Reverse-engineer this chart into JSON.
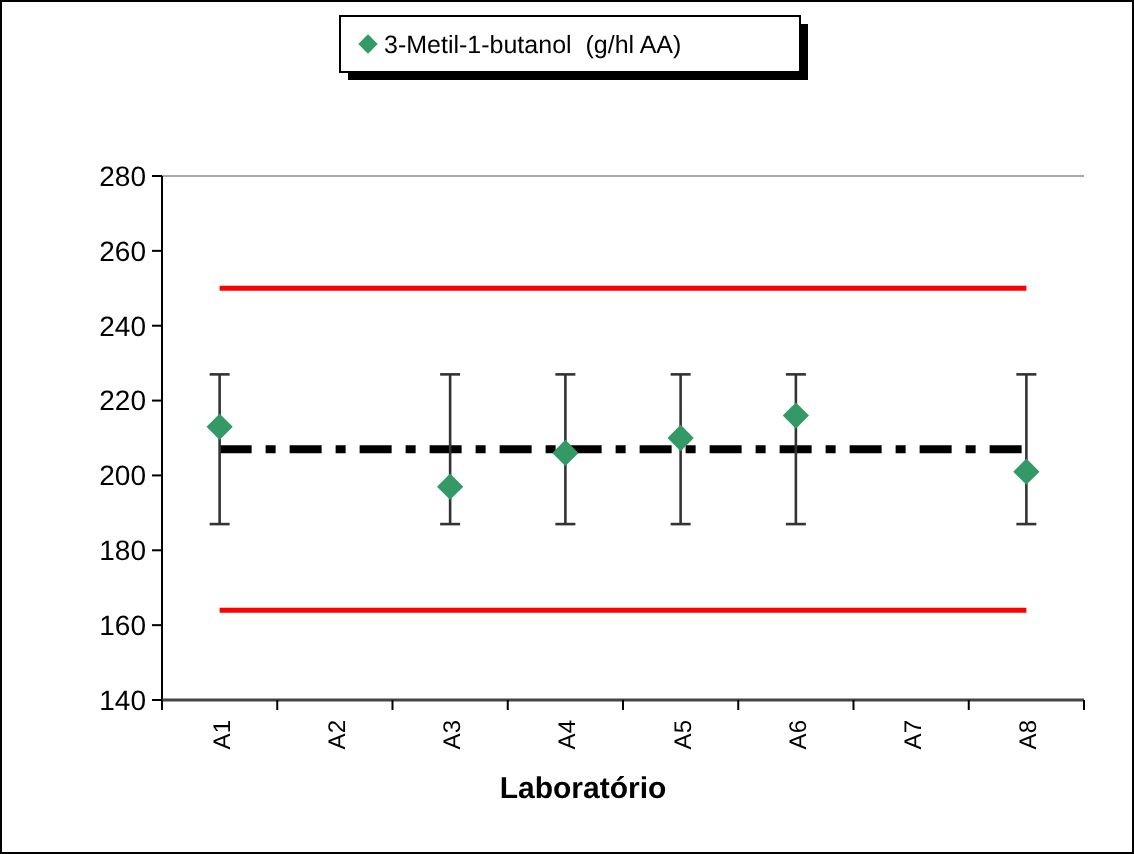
{
  "chart_data": {
    "type": "scatter",
    "xlabel": "Laboratório",
    "categories": [
      "A1",
      "A2",
      "A3",
      "A4",
      "A5",
      "A6",
      "A7",
      "A8"
    ],
    "series": [
      {
        "name": "3-Metil-1-butanol  (g/hl AA)",
        "color": "#339966",
        "values": [
          213,
          null,
          197,
          206,
          210,
          216,
          null,
          201
        ],
        "errors": [
          [
            187,
            227
          ],
          null,
          [
            187,
            227
          ],
          [
            187,
            227
          ],
          [
            187,
            227
          ],
          [
            187,
            227
          ],
          null,
          [
            187,
            227
          ]
        ]
      }
    ],
    "ylim": [
      140,
      280
    ],
    "yticks": [
      140,
      160,
      180,
      200,
      220,
      240,
      260,
      280
    ],
    "ref_lines": [
      {
        "axis": "y",
        "value": 250,
        "color": "#ff0000",
        "line_style": "solid"
      },
      {
        "axis": "y",
        "value": 164,
        "color": "#ff0000",
        "line_style": "solid"
      },
      {
        "axis": "y",
        "value": 207,
        "color": "#000000",
        "line_style": "dashed"
      }
    ],
    "marker": "diamond",
    "legend": "top",
    "grid": false
  }
}
